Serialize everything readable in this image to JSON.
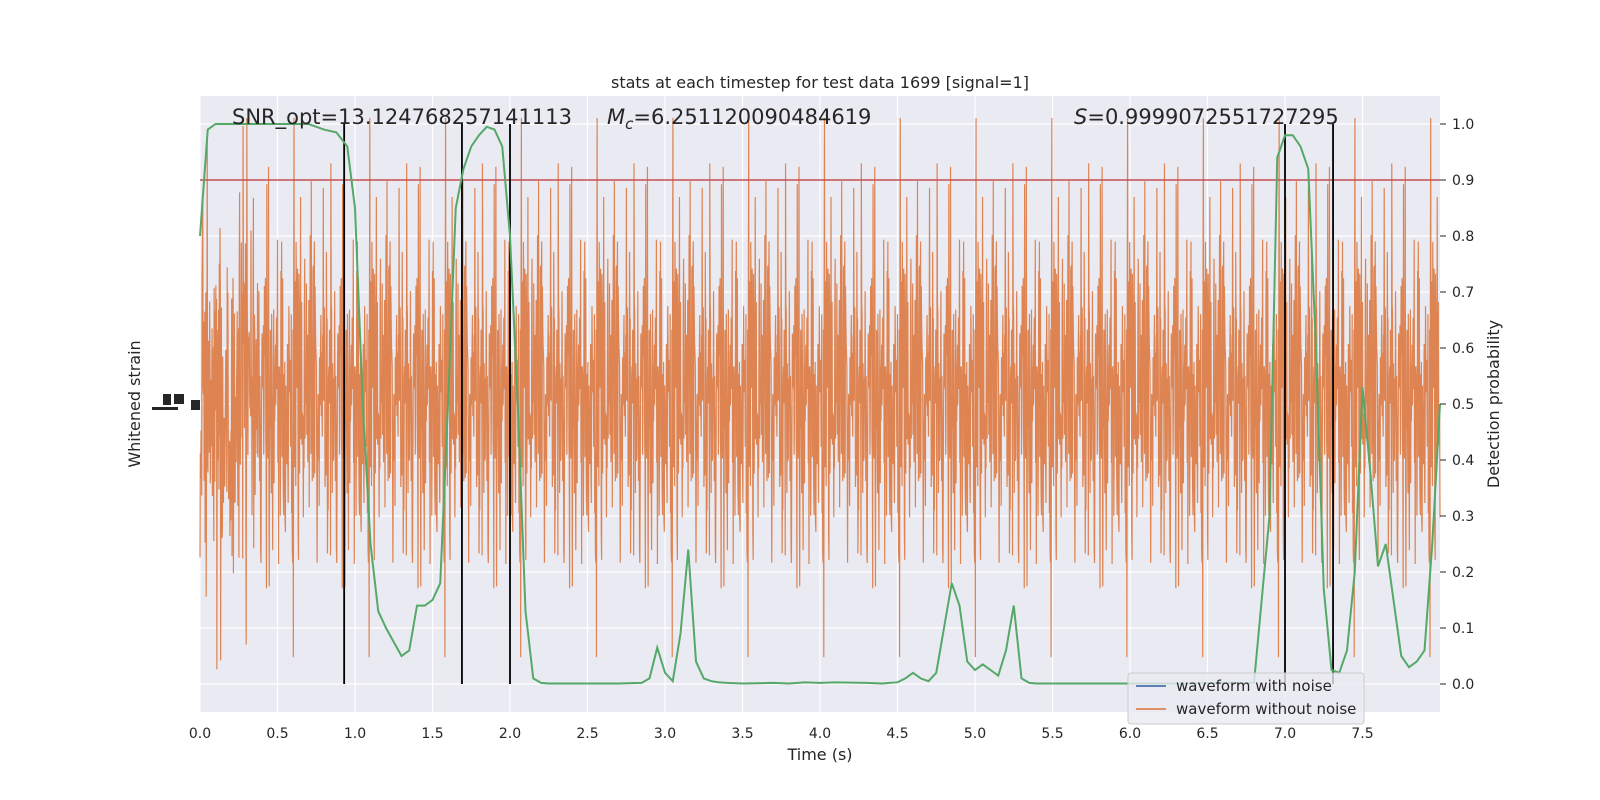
{
  "chart_data": {
    "type": "line",
    "title": "stats at each timestep for test data 1699 [signal=1]",
    "xlabel": "Time (s)",
    "ylabel_left": "Whitened strain",
    "ylabel_right": "Detection probability",
    "xlim": [
      0,
      8.0
    ],
    "ylim_right": [
      -0.05,
      1.05
    ],
    "x_ticks": [
      "0.0",
      "0.5",
      "1.0",
      "1.5",
      "2.0",
      "2.5",
      "3.0",
      "3.5",
      "4.0",
      "4.5",
      "5.0",
      "5.5",
      "6.0",
      "6.5",
      "7.0",
      "7.5"
    ],
    "y_ticks_right": [
      "0.0",
      "0.1",
      "0.2",
      "0.3",
      "0.4",
      "0.5",
      "0.6",
      "0.7",
      "0.8",
      "0.9",
      "1.0"
    ],
    "grid": true,
    "legend_position": "bottom-right",
    "annotations": {
      "snr_label": "SNR_opt=13.124768257141113",
      "mc_prefix": "M",
      "mc_sub": "c",
      "mc_value": "=6.251120090484619",
      "s_prefix": "S",
      "s_value": "=0.9999072551727295"
    },
    "threshold": 0.9,
    "vertical_lines": [
      0.93,
      1.69,
      2.0,
      7.0,
      7.31
    ],
    "series": [
      {
        "name": "waveform with noise",
        "color": "#4c72b0"
      },
      {
        "name": "waveform without noise",
        "color": "#dd8452"
      },
      {
        "color": "#55a868",
        "x": [
          0.0,
          0.05,
          0.1,
          0.2,
          0.3,
          0.4,
          0.5,
          0.6,
          0.7,
          0.8,
          0.88,
          0.95,
          1.0,
          1.05,
          1.1,
          1.15,
          1.2,
          1.25,
          1.3,
          1.35,
          1.4,
          1.45,
          1.5,
          1.55,
          1.6,
          1.65,
          1.7,
          1.75,
          1.8,
          1.85,
          1.9,
          1.95,
          2.0,
          2.05,
          2.1,
          2.15,
          2.2,
          2.25,
          2.3,
          2.35,
          2.5,
          2.7,
          2.85,
          2.9,
          2.95,
          3.0,
          3.05,
          3.1,
          3.15,
          3.2,
          3.25,
          3.3,
          3.35,
          3.4,
          3.5,
          3.7,
          3.8,
          3.9,
          4.0,
          4.1,
          4.3,
          4.4,
          4.5,
          4.55,
          4.6,
          4.65,
          4.7,
          4.75,
          4.8,
          4.85,
          4.9,
          4.95,
          5.0,
          5.05,
          5.1,
          5.15,
          5.2,
          5.25,
          5.3,
          5.35,
          5.4,
          5.45,
          5.5,
          5.7,
          6.0,
          6.3,
          6.6,
          6.8,
          6.9,
          6.95,
          7.0,
          7.05,
          7.1,
          7.15,
          7.2,
          7.25,
          7.3,
          7.35,
          7.4,
          7.45,
          7.5,
          7.55,
          7.6,
          7.65,
          7.7,
          7.75,
          7.8,
          7.85,
          7.9,
          7.95,
          8.0
        ],
        "y": [
          0.8,
          0.99,
          1.0,
          1.0,
          1.0,
          1.0,
          1.0,
          1.0,
          1.0,
          0.99,
          0.985,
          0.96,
          0.85,
          0.5,
          0.25,
          0.13,
          0.1,
          0.075,
          0.05,
          0.06,
          0.14,
          0.14,
          0.15,
          0.18,
          0.5,
          0.85,
          0.92,
          0.96,
          0.98,
          0.995,
          0.99,
          0.96,
          0.8,
          0.5,
          0.13,
          0.01,
          0.002,
          0.001,
          0.001,
          0.001,
          0.001,
          0.001,
          0.002,
          0.01,
          0.065,
          0.02,
          0.005,
          0.09,
          0.24,
          0.04,
          0.01,
          0.005,
          0.003,
          0.002,
          0.001,
          0.002,
          0.001,
          0.003,
          0.002,
          0.003,
          0.002,
          0.001,
          0.003,
          0.01,
          0.02,
          0.01,
          0.005,
          0.02,
          0.1,
          0.18,
          0.14,
          0.04,
          0.025,
          0.035,
          0.025,
          0.015,
          0.06,
          0.14,
          0.01,
          0.002,
          0.001,
          0.001,
          0.001,
          0.001,
          0.001,
          0.001,
          0.002,
          0.002,
          0.3,
          0.94,
          0.98,
          0.98,
          0.96,
          0.92,
          0.6,
          0.17,
          0.025,
          0.02,
          0.06,
          0.2,
          0.53,
          0.38,
          0.21,
          0.25,
          0.15,
          0.05,
          0.03,
          0.04,
          0.06,
          0.25,
          0.5
        ]
      }
    ]
  }
}
